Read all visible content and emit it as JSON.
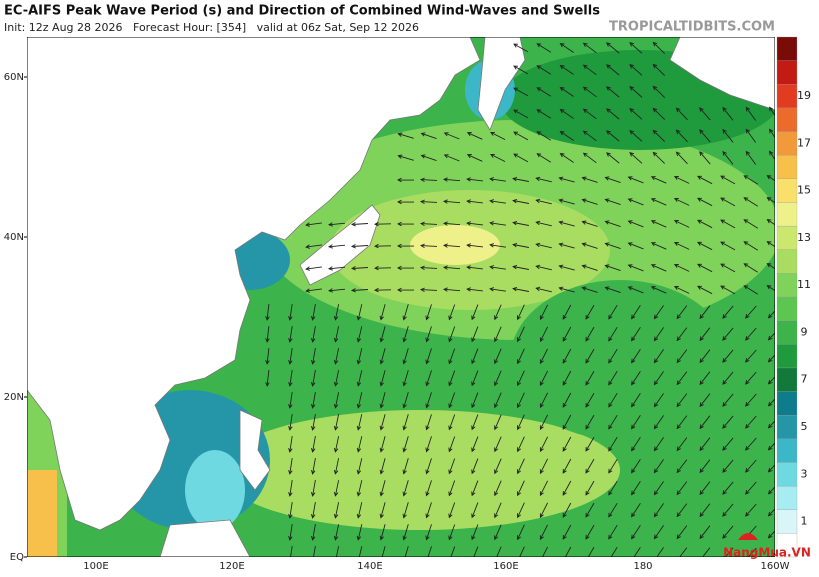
{
  "header": {
    "title": "EC-AIFS Peak Wave Period (s) and Direction of Combined Wind-Waves and Swells",
    "subtitle": "Init: 12z Aug 28 2026   Forecast Hour: [354]   valid at 06z Sat, Sep 12 2026",
    "source": "TROPICALTIDBITS.COM"
  },
  "map": {
    "lat_labels": [
      "60N",
      "40N",
      "20N",
      "EQ"
    ],
    "lon_labels": [
      "100E",
      "120E",
      "140E",
      "160E",
      "180",
      "160W"
    ]
  },
  "colorbar": {
    "labels": [
      "1",
      "3",
      "5",
      "7",
      "9",
      "11",
      "13",
      "15",
      "17",
      "19"
    ],
    "colors": [
      "#ffffff",
      "#d8f6f8",
      "#a6ecf0",
      "#6fd9e2",
      "#3cb7c8",
      "#2596a8",
      "#0f7c8c",
      "#117a3a",
      "#1f9a3c",
      "#3cb44b",
      "#5cc650",
      "#80d35a",
      "#a8dd62",
      "#cbe76e",
      "#eef08a",
      "#f8e06a",
      "#f7c04a",
      "#f29a3a",
      "#ec6a2c",
      "#e33a22",
      "#c41a14",
      "#7a0c08"
    ]
  },
  "watermark": "NangMua.VN"
}
